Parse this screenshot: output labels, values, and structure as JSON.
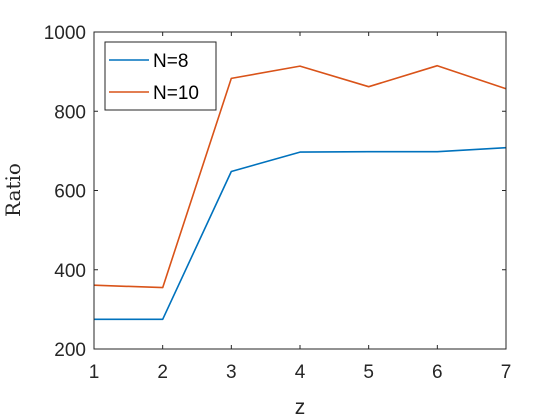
{
  "chart_data": {
    "type": "line",
    "x": [
      1,
      2,
      3,
      4,
      5,
      6,
      7
    ],
    "series": [
      {
        "name": "N=8",
        "color": "#0072BD",
        "values": [
          275,
          275,
          648,
          697,
          698,
          698,
          708
        ]
      },
      {
        "name": "N=10",
        "color": "#D95319",
        "values": [
          361,
          355,
          883,
          914,
          862,
          915,
          857
        ]
      }
    ],
    "xlabel": "z",
    "ylabel": "Ratio",
    "xlim": [
      1,
      7
    ],
    "ylim": [
      200,
      1000
    ],
    "xticks": [
      "1",
      "2",
      "3",
      "4",
      "5",
      "6",
      "7"
    ],
    "yticks": [
      "200",
      "400",
      "600",
      "800",
      "1000"
    ],
    "grid": false,
    "legend_position": "top-left"
  }
}
